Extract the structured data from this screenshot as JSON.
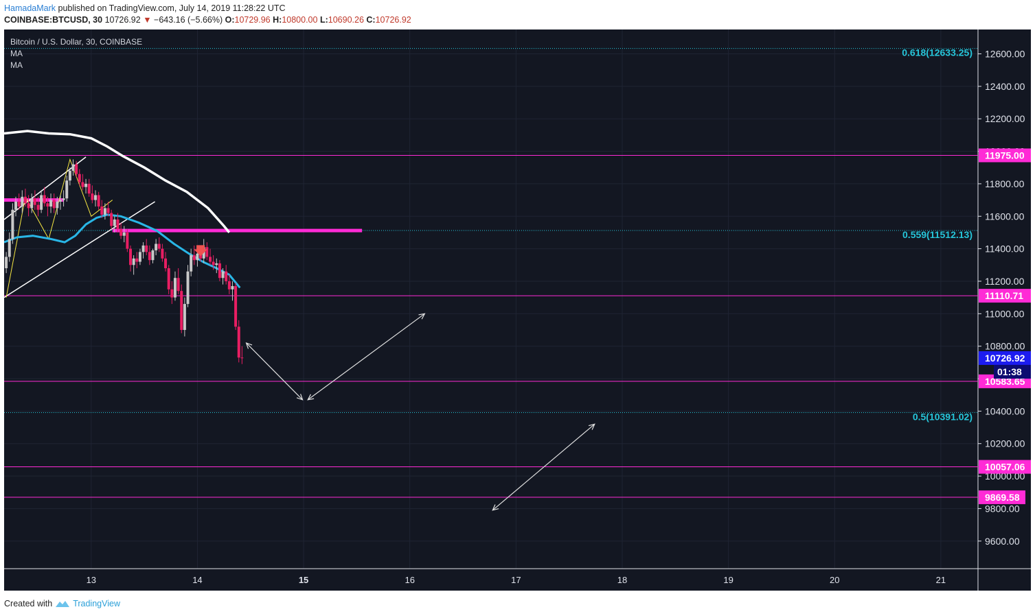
{
  "header": {
    "author": "HamadaMark",
    "published_text": "published on TradingView.com, July 14, 2019 11:28:22 UTC",
    "symbol": "COINBASE:BTCUSD, 30",
    "price": "10726.92",
    "change": "−643.16 (−5.66%)",
    "o_label": "O:",
    "o_value": "10729.96",
    "h_label": "H:",
    "h_value": "10800.00",
    "l_label": "L:",
    "l_value": "10690.26",
    "c_label": "C:",
    "c_value": "10726.92"
  },
  "legend": {
    "title": "Bitcoin / U.S. Dollar, 30, COINBASE",
    "ma1": "MA",
    "ma2": "MA"
  },
  "footer": {
    "created_with": "Created with",
    "brand": "TradingView"
  },
  "colors": {
    "background": "#131722",
    "magenta": "#ff2bd6",
    "fib": "#26c6da",
    "ma_fast": "#29b6e6",
    "ma_slow": "#ffffff",
    "candle_up": "#c8c8c8",
    "candle_down": "#e91e63",
    "current_price_bg": "#1c1cf0"
  },
  "chart_data": {
    "type": "candlestick",
    "title": "Bitcoin / U.S. Dollar, 30, COINBASE",
    "y_axis": {
      "ticks": [
        9600,
        9800,
        10000,
        10200,
        10400,
        10600,
        10800,
        11000,
        11200,
        11400,
        11600,
        11800,
        12000,
        12200,
        12400,
        12600
      ],
      "tick_labels": [
        "9600.00",
        "9800.00",
        "10000.00",
        "10200.00",
        "10400.00",
        "10600.00",
        "10800.00",
        "11000.00",
        "11200.00",
        "11400.00",
        "11600.00",
        "11800.00",
        "12000.00",
        "12200.00",
        "12400.00",
        "12600.00"
      ],
      "range": [
        9430,
        12750
      ]
    },
    "x_axis": {
      "ticks": [
        13,
        14,
        15,
        16,
        17,
        18,
        19,
        20,
        21
      ],
      "tick_labels": [
        "13",
        "14",
        "15",
        "16",
        "17",
        "18",
        "19",
        "20",
        "21"
      ],
      "range": [
        12.18,
        21.35
      ]
    },
    "horizontal_levels": [
      {
        "label": "11975.00",
        "value": 11975.0
      },
      {
        "label": "11110.71",
        "value": 11110.71
      },
      {
        "label": "10583.65",
        "value": 10583.65
      },
      {
        "label": "10057.06",
        "value": 10057.06
      },
      {
        "label": "9869.58",
        "value": 9869.58
      }
    ],
    "fib_levels": [
      {
        "label": "0.618(12633.25)",
        "value": 12633.25
      },
      {
        "label": "0.559(11512.13)",
        "value": 11512.13
      },
      {
        "label": "0.5(10391.02)",
        "value": 10391.02
      }
    ],
    "current_price": {
      "label": "10726.92",
      "value": 10726.92,
      "countdown": "01:38"
    },
    "candles": [
      [
        12.2,
        11280,
        11380,
        11250,
        11350
      ],
      [
        12.23,
        11350,
        11500,
        11320,
        11460
      ],
      [
        12.26,
        11460,
        11680,
        11430,
        11640
      ],
      [
        12.29,
        11640,
        11720,
        11600,
        11690
      ],
      [
        12.32,
        11690,
        11740,
        11640,
        11660
      ],
      [
        12.35,
        11660,
        11760,
        11620,
        11720
      ],
      [
        12.38,
        11720,
        11770,
        11660,
        11680
      ],
      [
        12.41,
        11680,
        11730,
        11600,
        11650
      ],
      [
        12.44,
        11650,
        11740,
        11620,
        11710
      ],
      [
        12.47,
        11710,
        11760,
        11640,
        11670
      ],
      [
        12.5,
        11670,
        11720,
        11600,
        11640
      ],
      [
        12.53,
        11640,
        11760,
        11620,
        11730
      ],
      [
        12.56,
        11730,
        11780,
        11660,
        11680
      ],
      [
        12.59,
        11680,
        11720,
        11600,
        11660
      ],
      [
        12.62,
        11660,
        11740,
        11620,
        11700
      ],
      [
        12.65,
        11700,
        11740,
        11620,
        11650
      ],
      [
        12.68,
        11650,
        11720,
        11610,
        11690
      ],
      [
        12.71,
        11690,
        11730,
        11640,
        11700
      ],
      [
        12.74,
        11700,
        11760,
        11660,
        11710
      ],
      [
        12.77,
        11710,
        11850,
        11690,
        11820
      ],
      [
        12.8,
        11820,
        11900,
        11790,
        11880
      ],
      [
        12.83,
        11880,
        11950,
        11850,
        11920
      ],
      [
        12.86,
        11920,
        11940,
        11840,
        11860
      ],
      [
        12.89,
        11860,
        11890,
        11790,
        11810
      ],
      [
        12.92,
        11810,
        11860,
        11760,
        11780
      ],
      [
        12.95,
        11780,
        11830,
        11740,
        11800
      ],
      [
        12.98,
        11800,
        11830,
        11720,
        11740
      ],
      [
        13.01,
        11740,
        11790,
        11680,
        11700
      ],
      [
        13.04,
        11700,
        11760,
        11660,
        11730
      ],
      [
        13.07,
        11730,
        11750,
        11640,
        11660
      ],
      [
        13.1,
        11660,
        11700,
        11590,
        11610
      ],
      [
        13.13,
        11610,
        11680,
        11580,
        11650
      ],
      [
        13.16,
        11650,
        11690,
        11600,
        11620
      ],
      [
        13.19,
        11620,
        11640,
        11520,
        11540
      ],
      [
        13.22,
        11540,
        11600,
        11500,
        11580
      ],
      [
        13.25,
        11580,
        11620,
        11500,
        11520
      ],
      [
        13.28,
        11520,
        11560,
        11460,
        11480
      ],
      [
        13.31,
        11480,
        11540,
        11440,
        11500
      ],
      [
        13.34,
        11500,
        11520,
        11380,
        11400
      ],
      [
        13.37,
        11400,
        11420,
        11260,
        11300
      ],
      [
        13.4,
        11300,
        11360,
        11240,
        11340
      ],
      [
        13.43,
        11340,
        11380,
        11280,
        11320
      ],
      [
        13.46,
        11320,
        11400,
        11300,
        11380
      ],
      [
        13.49,
        11380,
        11440,
        11340,
        11420
      ],
      [
        13.52,
        11420,
        11460,
        11360,
        11380
      ],
      [
        13.55,
        11380,
        11420,
        11300,
        11330
      ],
      [
        13.58,
        11330,
        11400,
        11310,
        11390
      ],
      [
        13.61,
        11390,
        11460,
        11360,
        11430
      ],
      [
        13.64,
        11430,
        11470,
        11380,
        11400
      ],
      [
        13.67,
        11400,
        11430,
        11320,
        11340
      ],
      [
        13.7,
        11340,
        11380,
        11260,
        11280
      ],
      [
        13.73,
        11280,
        11300,
        11120,
        11150
      ],
      [
        13.76,
        11150,
        11200,
        11060,
        11100
      ],
      [
        13.79,
        11100,
        11260,
        11080,
        11220
      ],
      [
        13.82,
        11220,
        11280,
        11120,
        11140
      ],
      [
        13.85,
        11140,
        11180,
        10880,
        10900
      ],
      [
        13.88,
        10900,
        11100,
        10860,
        11060
      ],
      [
        13.91,
        11060,
        11300,
        11040,
        11260
      ],
      [
        13.94,
        11260,
        11400,
        11230,
        11360
      ],
      [
        13.97,
        11360,
        11420,
        11300,
        11330
      ],
      [
        14.0,
        11330,
        11400,
        11290,
        11370
      ],
      [
        14.03,
        11370,
        11420,
        11320,
        11340
      ],
      [
        14.06,
        11340,
        11460,
        11310,
        11410
      ],
      [
        14.09,
        11410,
        11440,
        11330,
        11350
      ],
      [
        14.12,
        11350,
        11400,
        11300,
        11320
      ],
      [
        14.15,
        11320,
        11360,
        11270,
        11300
      ],
      [
        14.18,
        11300,
        11340,
        11250,
        11310
      ],
      [
        14.21,
        11310,
        11330,
        11200,
        11220
      ],
      [
        14.24,
        11220,
        11280,
        11180,
        11260
      ],
      [
        14.27,
        11260,
        11300,
        11180,
        11200
      ],
      [
        14.3,
        11200,
        11240,
        11120,
        11150
      ],
      [
        14.33,
        11150,
        11200,
        11080,
        11170
      ],
      [
        14.36,
        11170,
        11190,
        10900,
        10920
      ],
      [
        14.39,
        10920,
        10960,
        10700,
        10730
      ],
      [
        14.42,
        10730,
        10800,
        10690,
        10727
      ]
    ],
    "ma_fast": [
      [
        12.18,
        11440
      ],
      [
        12.3,
        11470
      ],
      [
        12.45,
        11480
      ],
      [
        12.62,
        11460
      ],
      [
        12.75,
        11440
      ],
      [
        12.85,
        11480
      ],
      [
        12.95,
        11550
      ],
      [
        13.05,
        11590
      ],
      [
        13.15,
        11610
      ],
      [
        13.28,
        11600
      ],
      [
        13.45,
        11560
      ],
      [
        13.62,
        11510
      ],
      [
        13.78,
        11430
      ],
      [
        13.92,
        11370
      ],
      [
        14.05,
        11320
      ],
      [
        14.18,
        11280
      ],
      [
        14.3,
        11240
      ],
      [
        14.4,
        11160
      ]
    ],
    "ma_slow": [
      [
        12.18,
        12110
      ],
      [
        12.4,
        12125
      ],
      [
        12.6,
        12110
      ],
      [
        12.8,
        12105
      ],
      [
        13.0,
        12080
      ],
      [
        13.15,
        12030
      ],
      [
        13.3,
        11970
      ],
      [
        13.5,
        11900
      ],
      [
        13.7,
        11820
      ],
      [
        13.9,
        11750
      ],
      [
        14.1,
        11650
      ],
      [
        14.25,
        11540
      ],
      [
        14.3,
        11500
      ]
    ]
  }
}
